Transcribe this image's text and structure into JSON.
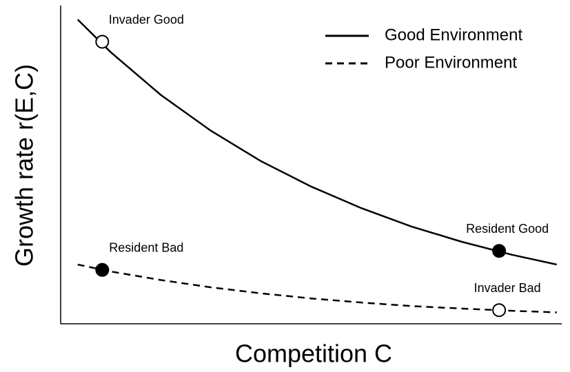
{
  "chart_data": {
    "type": "line",
    "x_label": "Competition C",
    "y_label": "Growth rate r(E,C)",
    "x": [
      0.034,
      0.1,
      0.2,
      0.3,
      0.4,
      0.5,
      0.6,
      0.7,
      0.8,
      0.9,
      0.99
    ],
    "series": [
      {
        "name": "Good Environment",
        "color": "#000000",
        "line_style": "solid",
        "values": [
          0.96,
          0.857,
          0.722,
          0.609,
          0.513,
          0.433,
          0.365,
          0.307,
          0.259,
          0.218,
          0.187
        ]
      },
      {
        "name": "Poor Environment",
        "color": "#000000",
        "line_style": "dashed",
        "values": [
          0.187,
          0.165,
          0.138,
          0.115,
          0.096,
          0.08,
          0.067,
          0.056,
          0.048,
          0.041,
          0.036
        ]
      }
    ],
    "points": [
      {
        "label": "Invader Good",
        "x": 0.083,
        "y": 0.89,
        "filled": false
      },
      {
        "label": "Resident Bad",
        "x": 0.083,
        "y": 0.17,
        "filled": true
      },
      {
        "label": "Resident Good",
        "x": 0.875,
        "y": 0.23,
        "filled": true
      },
      {
        "label": "Invader Bad",
        "x": 0.875,
        "y": 0.043,
        "filled": false
      }
    ],
    "xlim": [
      0,
      1
    ],
    "ylim": [
      0,
      1
    ],
    "legend": "top-right"
  }
}
